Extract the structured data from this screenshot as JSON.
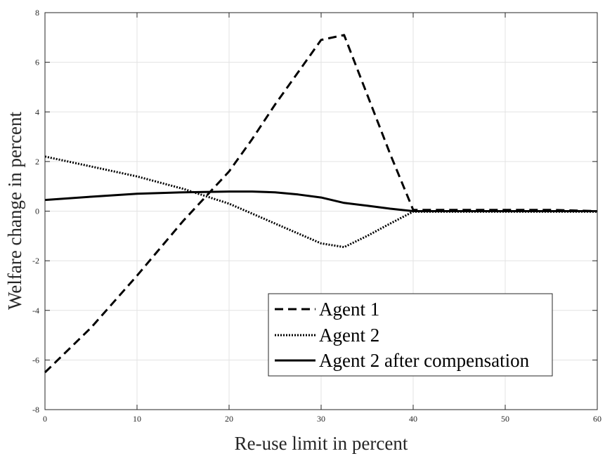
{
  "chart_data": {
    "type": "line",
    "xlabel": "Re-use limit in percent",
    "ylabel": "Welfare change in percent",
    "xlim": [
      0,
      60
    ],
    "ylim": [
      -8,
      8
    ],
    "xticks": [
      0,
      10,
      20,
      30,
      40,
      50,
      60
    ],
    "yticks": [
      -8,
      -6,
      -4,
      -2,
      0,
      2,
      4,
      6,
      8
    ],
    "grid": true,
    "legend_position": "lower-right",
    "series": [
      {
        "name": "Agent 1",
        "style": "dashed",
        "x": [
          0,
          5,
          10,
          15,
          17.5,
          20,
          22.5,
          25,
          27.5,
          30,
          32.5,
          35,
          37.5,
          40,
          45,
          50,
          55,
          60
        ],
        "y": [
          -6.5,
          -4.7,
          -2.6,
          -0.4,
          0.6,
          1.6,
          2.9,
          4.3,
          5.6,
          6.9,
          7.1,
          4.7,
          2.3,
          0.05,
          0.05,
          0.05,
          0.05,
          0.0
        ]
      },
      {
        "name": "Agent 2",
        "style": "dotted",
        "x": [
          0,
          5,
          10,
          15,
          20,
          22.5,
          25,
          27.5,
          30,
          32.5,
          35,
          37.5,
          40,
          45,
          50,
          55,
          60
        ],
        "y": [
          2.2,
          1.8,
          1.4,
          0.9,
          0.3,
          -0.1,
          -0.5,
          -0.9,
          -1.3,
          -1.45,
          -1.0,
          -0.5,
          -0.02,
          -0.02,
          -0.02,
          -0.02,
          -0.02
        ]
      },
      {
        "name": "Agent 2 after compensation",
        "style": "solid",
        "x": [
          0,
          5,
          10,
          15,
          20,
          22.5,
          25,
          27.5,
          30,
          32.5,
          35,
          37.5,
          40,
          45,
          50,
          55,
          60
        ],
        "y": [
          0.45,
          0.58,
          0.7,
          0.76,
          0.79,
          0.79,
          0.76,
          0.67,
          0.55,
          0.33,
          0.22,
          0.1,
          0.0,
          0.0,
          0.0,
          0.0,
          0.0
        ]
      }
    ]
  }
}
